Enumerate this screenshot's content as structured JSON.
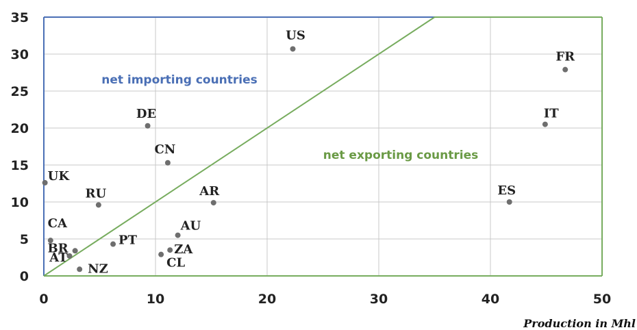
{
  "chart_data": {
    "type": "scatter",
    "title": "",
    "xlabel": "Production in Mhl",
    "ylabel": "",
    "xlim": [
      0,
      50
    ],
    "ylim": [
      0,
      35
    ],
    "xticks": [
      "0",
      "10",
      "20",
      "30",
      "40",
      "50"
    ],
    "yticks": [
      "0",
      "5",
      "10",
      "15",
      "20",
      "25",
      "30",
      "35"
    ],
    "grid": true,
    "points": [
      {
        "label": "US",
        "x": 22.3,
        "y": 30.7
      },
      {
        "label": "FR",
        "x": 46.7,
        "y": 27.9
      },
      {
        "label": "IT",
        "x": 44.9,
        "y": 20.5
      },
      {
        "label": "DE",
        "x": 9.3,
        "y": 20.3
      },
      {
        "label": "CN",
        "x": 11.1,
        "y": 15.3
      },
      {
        "label": "UK",
        "x": 0.1,
        "y": 12.6
      },
      {
        "label": "ES",
        "x": 41.7,
        "y": 10.0
      },
      {
        "label": "AR",
        "x": 15.2,
        "y": 9.9
      },
      {
        "label": "RU",
        "x": 4.9,
        "y": 9.6
      },
      {
        "label": "CA",
        "x": 0.6,
        "y": 4.8
      },
      {
        "label": "AU",
        "x": 12.0,
        "y": 5.5
      },
      {
        "label": "PT",
        "x": 6.2,
        "y": 4.3
      },
      {
        "label": "BR",
        "x": 2.8,
        "y": 3.4
      },
      {
        "label": "ZA",
        "x": 11.3,
        "y": 3.5
      },
      {
        "label": "AT",
        "x": 2.3,
        "y": 2.7
      },
      {
        "label": "CL",
        "x": 10.5,
        "y": 2.9
      },
      {
        "label": "NZ",
        "x": 3.2,
        "y": 0.9
      }
    ],
    "diagonal": {
      "from": [
        0,
        0
      ],
      "to": [
        35,
        35
      ],
      "color": "#77ac5e"
    },
    "regions": [
      {
        "text": "net importing  countries",
        "color": "#4a6fb5"
      },
      {
        "text": "net exporting countries",
        "color": "#6a9a45"
      }
    ],
    "colors": {
      "points": "#6e6e6e",
      "grid": "#c8c8c8",
      "import_border": "#4a6fb5",
      "export_border": "#77ac5e"
    }
  }
}
